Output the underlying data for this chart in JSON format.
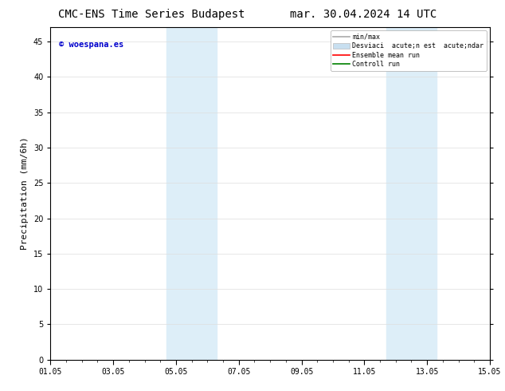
{
  "title_left": "CMC-ENS Time Series Budapest",
  "title_right": "mar. 30.04.2024 14 UTC",
  "ylabel": "Precipitation (mm/6h)",
  "xlim": [
    0,
    14
  ],
  "ylim": [
    0,
    47
  ],
  "yticks": [
    0,
    5,
    10,
    15,
    20,
    25,
    30,
    35,
    40,
    45
  ],
  "xtick_labels": [
    "01.05",
    "03.05",
    "05.05",
    "07.05",
    "09.05",
    "11.05",
    "13.05",
    "15.05"
  ],
  "xtick_positions": [
    0,
    2,
    4,
    6,
    8,
    10,
    12,
    14
  ],
  "shaded_regions": [
    {
      "x_start": 3.7,
      "x_end": 5.3,
      "color": "#ddeef8"
    },
    {
      "x_start": 10.7,
      "x_end": 12.3,
      "color": "#ddeef8"
    }
  ],
  "watermark_text": "© woespana.es",
  "watermark_color": "#0000cc",
  "legend_labels": [
    "min/max",
    "Desviaci  acute;n est  acute;ndar",
    "Ensemble mean run",
    "Controll run"
  ],
  "legend_colors": [
    "#aaaaaa",
    "#c8dff0",
    "#ff0000",
    "#008000"
  ],
  "bg_color": "#ffffff",
  "grid_color": "#dddddd",
  "title_fontsize": 10,
  "tick_label_fontsize": 7,
  "ylabel_fontsize": 8
}
